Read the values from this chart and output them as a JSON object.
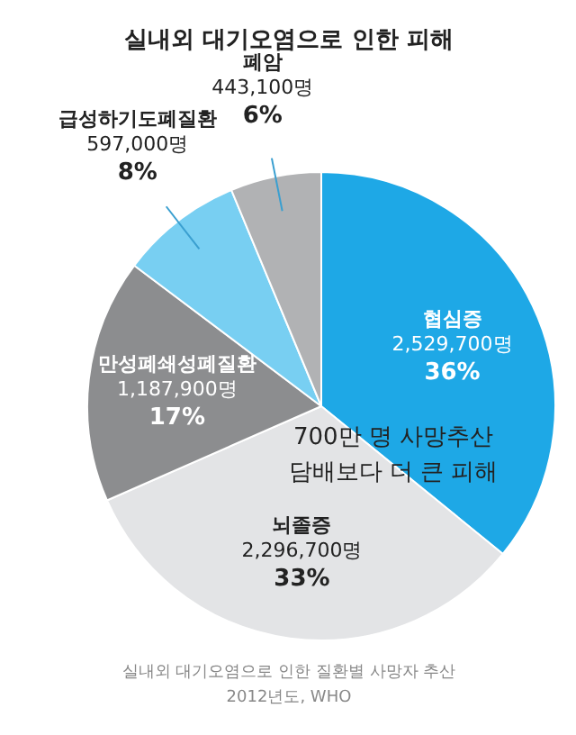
{
  "chart_data": {
    "type": "pie",
    "title": "실내외 대기오염으로 인한 피해",
    "categories": [
      "협심증",
      "뇌졸증",
      "만성폐쇄성폐질환",
      "급성하기도폐질환",
      "폐암"
    ],
    "values": [
      2529700,
      2296700,
      1187900,
      597000,
      443100
    ],
    "value_labels": [
      "2,529,700명\n36%",
      "2,296,700명\n33%",
      "1,187,900명\n17%",
      "597,000명\n8%",
      "443,100명\n6%"
    ],
    "colors": [
      "#1ea8e6",
      "#e3e4e6",
      "#8c8d8f",
      "#78cff2",
      "#b1b2b4"
    ],
    "annotations": [
      "700만 명 사망추산\n담배보다 더 큰 피해",
      "실내외 대기오염으로 인한 질환별 사망자 추산\n2012년도, WHO"
    ]
  }
}
